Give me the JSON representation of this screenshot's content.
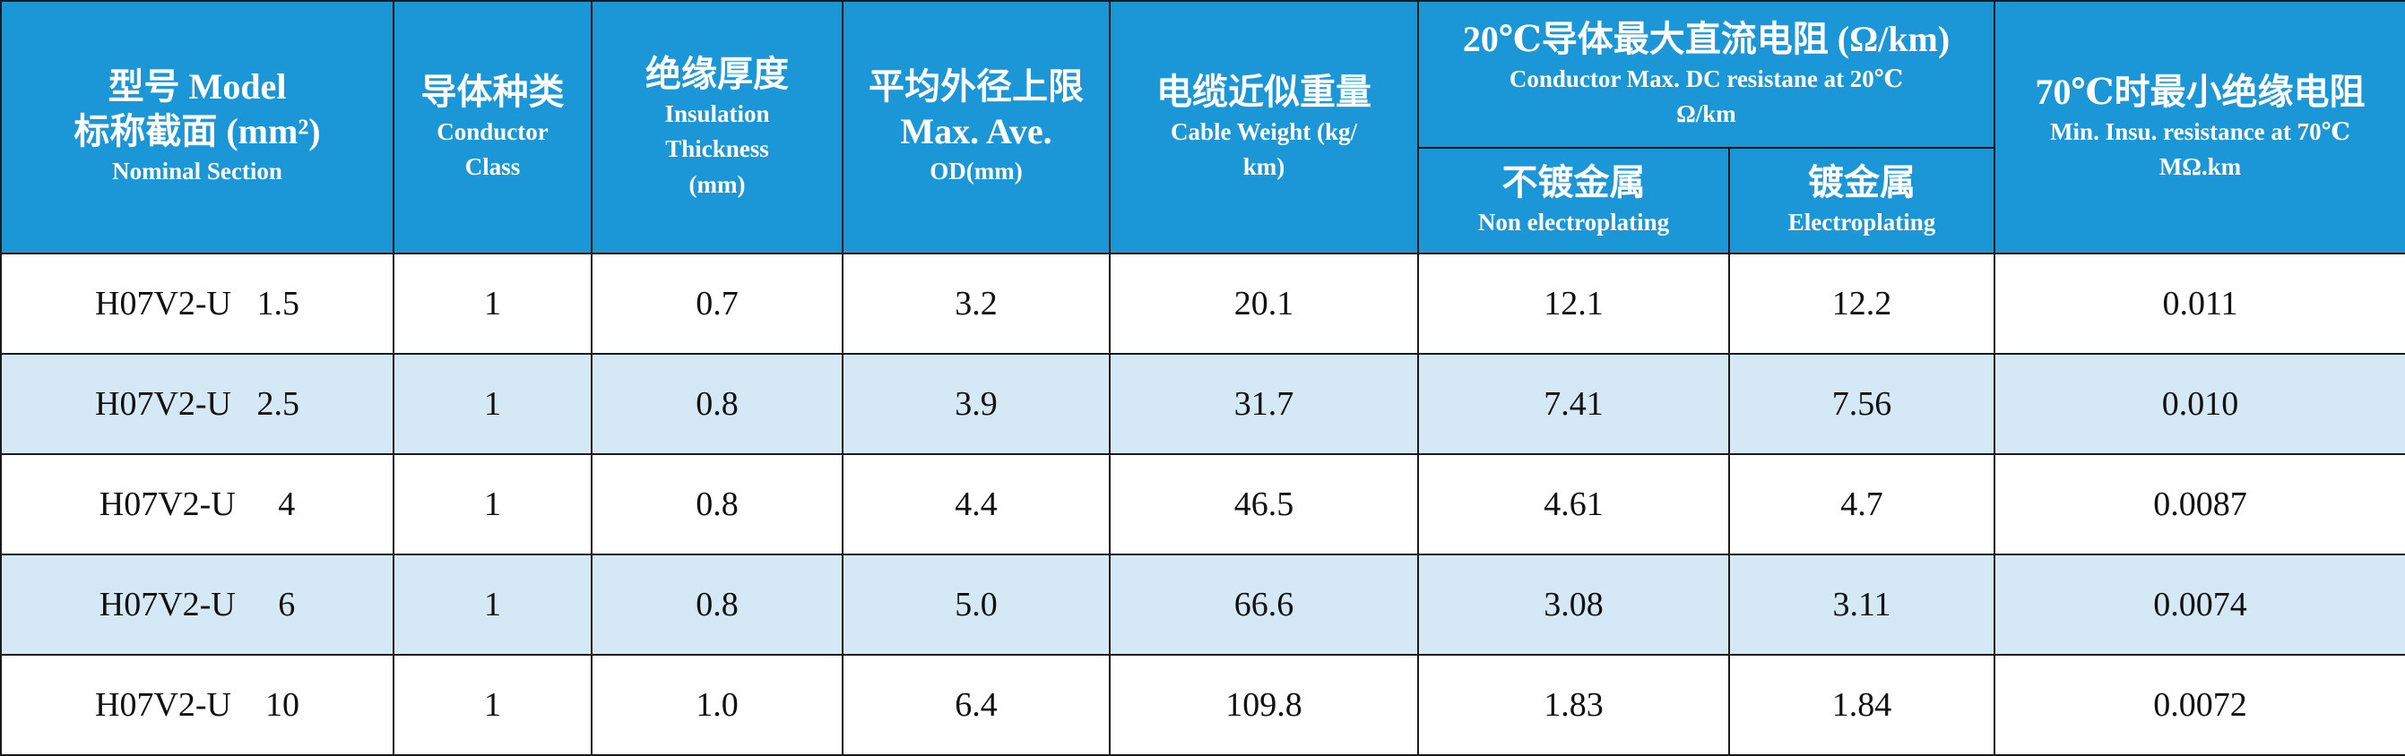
{
  "table": {
    "headers": [
      {
        "lines": [
          "型号 Model",
          "标称截面 (mm²)",
          "Nominal Section"
        ]
      },
      {
        "lines": [
          "导体种类",
          "Conductor",
          "Class"
        ]
      },
      {
        "lines": [
          "绝缘厚度",
          "Insulation",
          "Thickness",
          "(mm)"
        ]
      },
      {
        "lines": [
          "平均外径上限",
          "Max. Ave.",
          "OD(mm)"
        ]
      },
      {
        "lines": [
          "电缆近似重量",
          "Cable  Weight (kg/",
          "km)"
        ]
      },
      {
        "lines": [
          "20℃导体最大直流电阻 (Ω/km)",
          "Conductor Max. DC resistane at 20℃",
          "Ω/km"
        ],
        "sub": [
          {
            "lines": [
              "不镀金属",
              "Non electroplating"
            ]
          },
          {
            "lines": [
              "镀金属",
              "Electroplating"
            ]
          }
        ]
      },
      {
        "lines": [
          "70℃时最小绝缘电阻",
          "Min. Insu. resistance at 70℃",
          "MΩ.km"
        ]
      }
    ],
    "rows": [
      [
        "H07V2-U   1.5",
        "1",
        "0.7",
        "3.2",
        "20.1",
        "12.1",
        "12.2",
        "0.011"
      ],
      [
        "H07V2-U   2.5",
        "1",
        "0.8",
        "3.9",
        "31.7",
        "7.41",
        "7.56",
        "0.010"
      ],
      [
        "H07V2-U     4",
        "1",
        "0.8",
        "4.4",
        "46.5",
        "4.61",
        "4.7",
        "0.0087"
      ],
      [
        "H07V2-U     6",
        "1",
        "0.8",
        "5.0",
        "66.6",
        "3.08",
        "3.11",
        "0.0074"
      ],
      [
        "H07V2-U    10",
        "1",
        "1.0",
        "6.4",
        "109.8",
        "1.83",
        "1.84",
        "0.0072"
      ]
    ]
  }
}
